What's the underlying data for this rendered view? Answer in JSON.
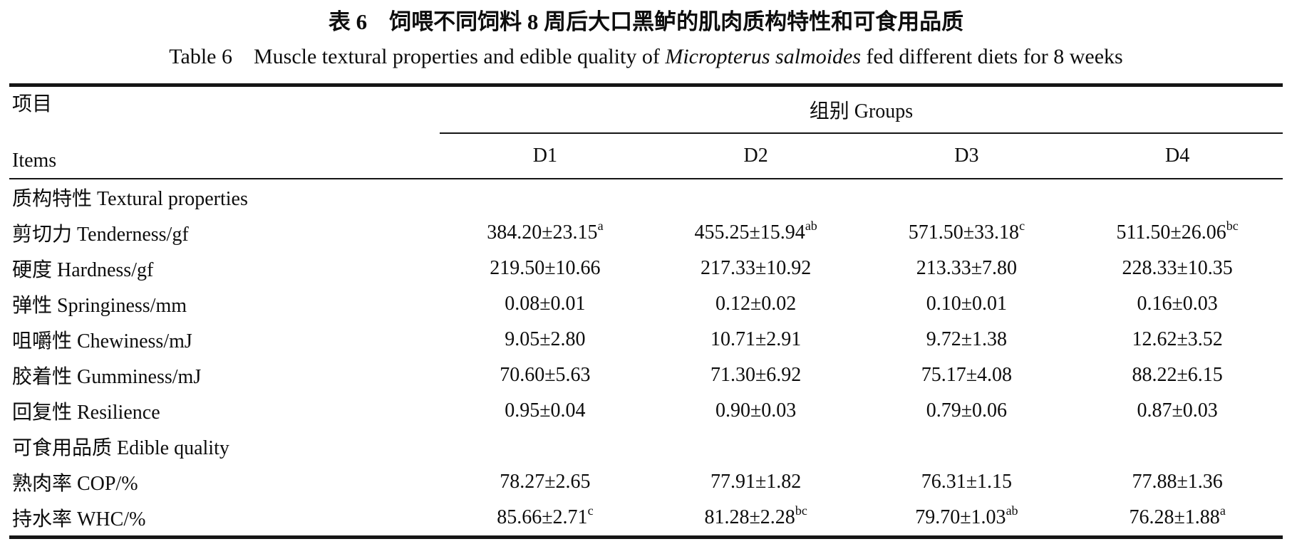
{
  "page": {
    "title_zh": "表 6　饲喂不同饲料 8 周后大口黑鲈的肌肉质构特性和可食用品质",
    "title_en_prefix": "Table 6　Muscle textural properties and edible quality of ",
    "title_en_species": "Micropterus salmoides",
    "title_en_suffix": " fed different diets for 8 weeks"
  },
  "colors": {
    "text": "#0d0d0d",
    "background": "#ffffff",
    "rule": "#151515"
  },
  "table": {
    "items_header_zh": "项目",
    "items_header_en": "Items",
    "groups_header": "组别 Groups",
    "columns": [
      "D1",
      "D2",
      "D3",
      "D4"
    ],
    "rows": [
      {
        "type": "section",
        "label": "质构特性 Textural properties"
      },
      {
        "type": "data",
        "label": "剪切力 Tenderness/gf",
        "values": [
          {
            "text": "384.20±23.15",
            "sup": "a"
          },
          {
            "text": "455.25±15.94",
            "sup": "ab"
          },
          {
            "text": "571.50±33.18",
            "sup": "c"
          },
          {
            "text": "511.50±26.06",
            "sup": "bc"
          }
        ]
      },
      {
        "type": "data",
        "label": "硬度 Hardness/gf",
        "values": [
          {
            "text": "219.50±10.66"
          },
          {
            "text": "217.33±10.92"
          },
          {
            "text": "213.33±7.80"
          },
          {
            "text": "228.33±10.35"
          }
        ]
      },
      {
        "type": "data",
        "label": "弹性 Springiness/mm",
        "values": [
          {
            "text": "0.08±0.01"
          },
          {
            "text": "0.12±0.02"
          },
          {
            "text": "0.10±0.01"
          },
          {
            "text": "0.16±0.03"
          }
        ]
      },
      {
        "type": "data",
        "label": "咀嚼性 Chewiness/mJ",
        "values": [
          {
            "text": "9.05±2.80"
          },
          {
            "text": "10.71±2.91"
          },
          {
            "text": "9.72±1.38"
          },
          {
            "text": "12.62±3.52"
          }
        ]
      },
      {
        "type": "data",
        "label": "胶着性 Gumminess/mJ",
        "values": [
          {
            "text": "70.60±5.63"
          },
          {
            "text": "71.30±6.92"
          },
          {
            "text": "75.17±4.08"
          },
          {
            "text": "88.22±6.15"
          }
        ]
      },
      {
        "type": "data",
        "label": "回复性 Resilience",
        "values": [
          {
            "text": "0.95±0.04"
          },
          {
            "text": "0.90±0.03"
          },
          {
            "text": "0.79±0.06"
          },
          {
            "text": "0.87±0.03"
          }
        ]
      },
      {
        "type": "section",
        "label": "可食用品质 Edible quality"
      },
      {
        "type": "data",
        "label": "熟肉率 COP/%",
        "values": [
          {
            "text": "78.27±2.65"
          },
          {
            "text": "77.91±1.82"
          },
          {
            "text": "76.31±1.15"
          },
          {
            "text": "77.88±1.36"
          }
        ]
      },
      {
        "type": "data",
        "label": "持水率 WHC/%",
        "values": [
          {
            "text": "85.66±2.71",
            "sup": "c"
          },
          {
            "text": "81.28±2.28",
            "sup": "bc"
          },
          {
            "text": "79.70±1.03",
            "sup": "ab"
          },
          {
            "text": "76.28±1.88",
            "sup": "a"
          }
        ]
      }
    ]
  }
}
